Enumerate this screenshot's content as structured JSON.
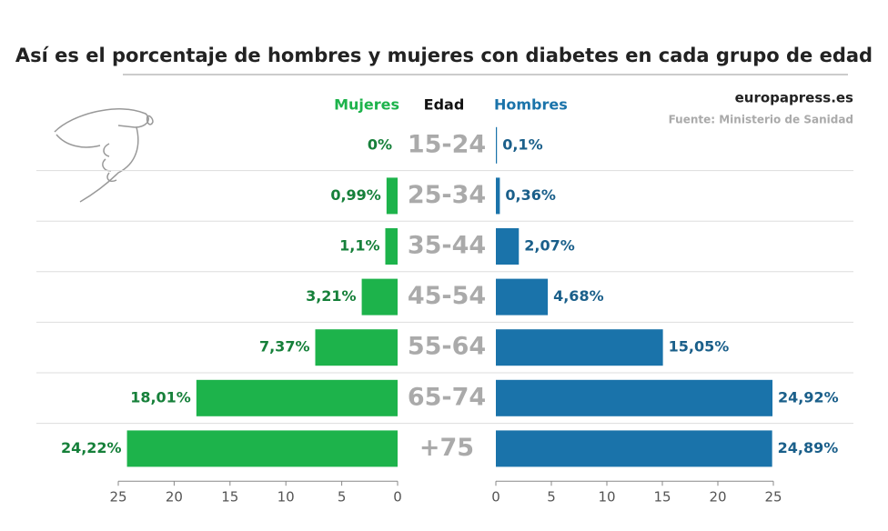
{
  "chart_data": {
    "type": "butterfly",
    "title": "Así es el porcentaje de hombres y mujeres con diabetes en cada grupo de edad",
    "source": "europapress.es",
    "note": "Fuente: Ministerio de Sanidad",
    "category_header": "Edad",
    "categories": [
      "15-24",
      "25-34",
      "35-44",
      "45-54",
      "55-64",
      "65-74",
      "+75"
    ],
    "series": [
      {
        "name": "Mujeres",
        "color": "#1db34b",
        "label_color": "#16803a",
        "side": "left",
        "values": [
          0,
          0.99,
          1.1,
          3.21,
          7.37,
          18.01,
          24.22
        ],
        "value_labels": [
          "0%",
          "0,99%",
          "1,1%",
          "3,21%",
          "7,37%",
          "18,01%",
          "24,22%"
        ]
      },
      {
        "name": "Hombres",
        "color": "#1a73aa",
        "label_color": "#1a5f8a",
        "side": "right",
        "values": [
          0.1,
          0.36,
          2.07,
          4.68,
          15.05,
          24.92,
          24.89
        ],
        "value_labels": [
          "0,1%",
          "0,36%",
          "2,07%",
          "4,68%",
          "15,05%",
          "24,92%",
          "24,89%"
        ]
      }
    ],
    "xlim": [
      0,
      25
    ],
    "xticks": [
      0,
      5,
      10,
      15,
      20,
      25
    ]
  }
}
